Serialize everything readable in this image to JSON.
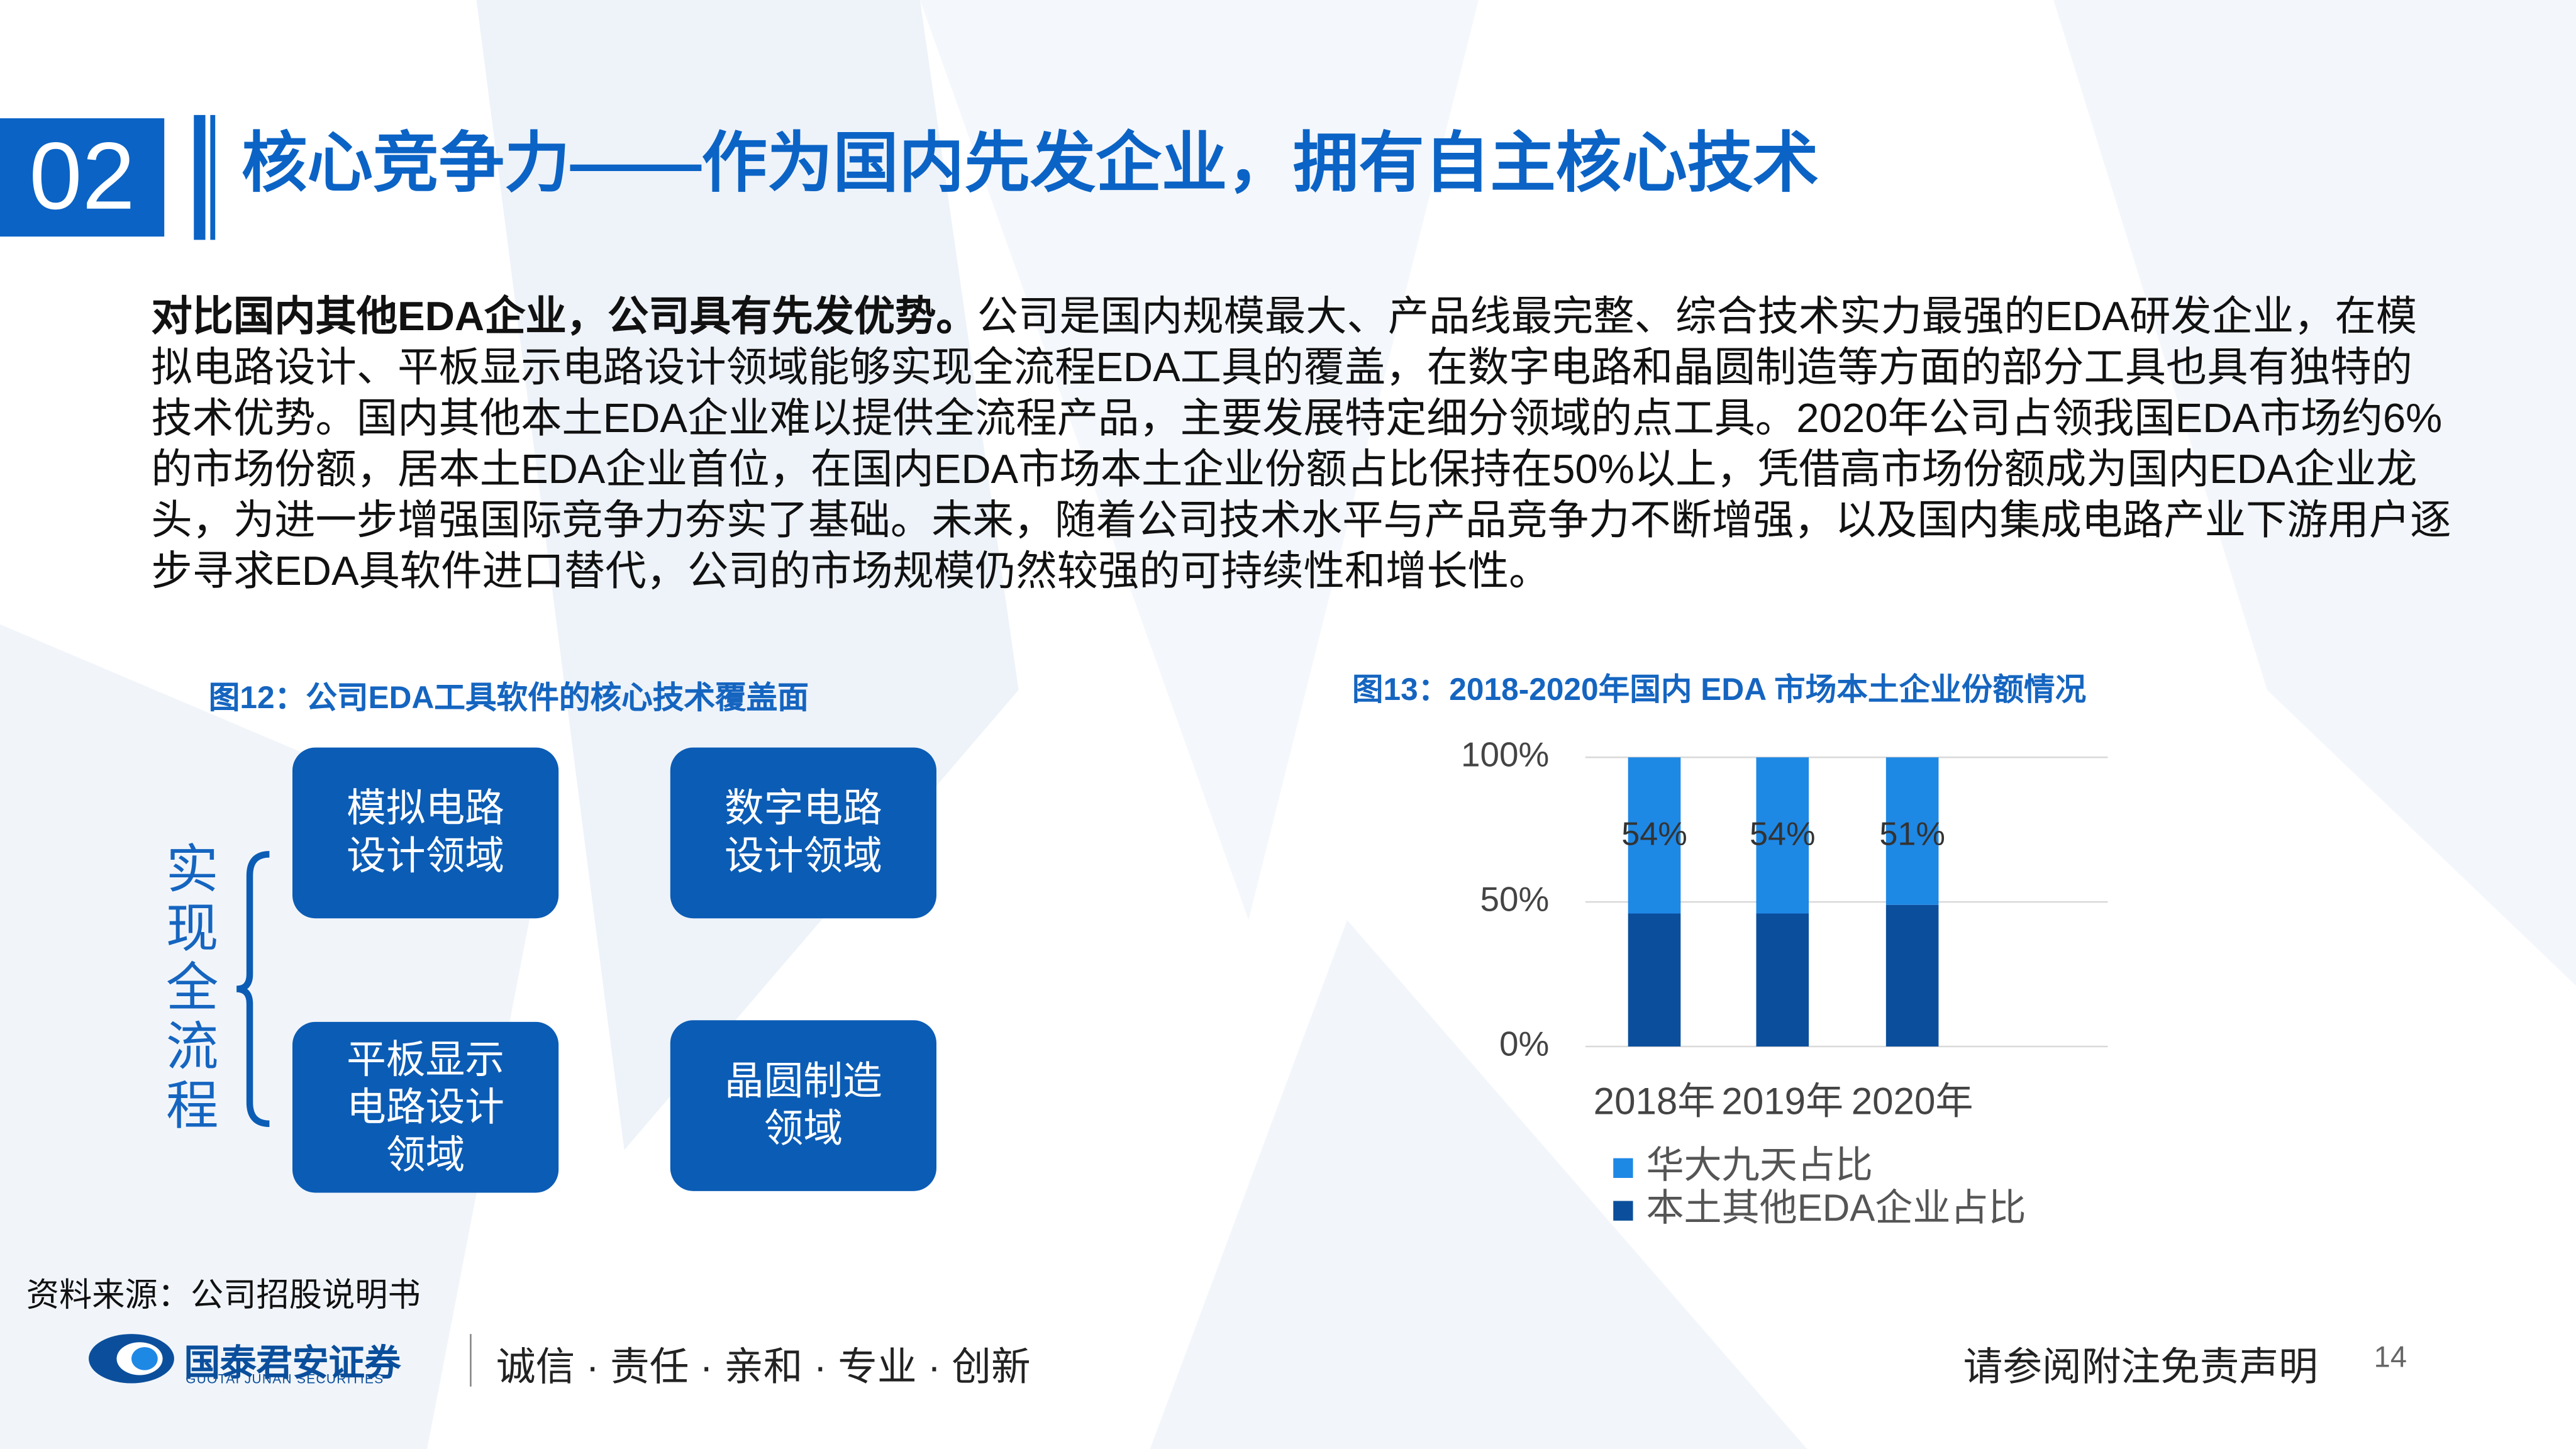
{
  "header": {
    "number": "02",
    "title": "核心竞争力——作为国内先发企业，拥有自主核心技术"
  },
  "paragraph": {
    "lead": "对比国内其他EDA企业，公司具有先发优势。",
    "text": "公司是国内规模最大、产品线最完整、综合技术实力最强的EDA研发企业，在模拟电路设计、平板显示电路设计领域能够实现全流程EDA工具的覆盖，在数字电路和晶圆制造等方面的部分工具也具有独特的技术优势。国内其他本土EDA企业难以提供全流程产品，主要发展特定细分领域的点工具。2020年公司占领我国EDA市场约6%的市场份额，居本土EDA企业首位，在国内EDA市场本土企业份额占比保持在50%以上，凭借高市场份额成为国内EDA企业龙头，为进一步增强国际竞争力夯实了基础。未来，随着公司技术水平与产品竞争力不断增强，以及国内集成电路产业下游用户逐步寻求EDA具软件进口替代，公司的市场规模仍然较强的可持续性和增长性。"
  },
  "figure12": {
    "caption": "图12：公司EDA工具软件的核心技术覆盖面",
    "side_label": "实现全流程",
    "boxes": [
      [
        "模拟电路",
        "设计领域"
      ],
      [
        "数字电路",
        "设计领域"
      ],
      [
        "平板显示",
        "电路设计",
        "领域"
      ],
      [
        "晶圆制造",
        "领域"
      ]
    ]
  },
  "chart_data": {
    "type": "bar",
    "stacked": true,
    "title": "图13：2018-2020年国内 EDA 市场本土企业份额情况",
    "categories": [
      "2018年",
      "2019年",
      "2020年"
    ],
    "series": [
      {
        "name": "华大九天占比",
        "color": "#1e88e5",
        "values": [
          54,
          54,
          51
        ],
        "value_labels": [
          "54%",
          "54%",
          "51%"
        ]
      },
      {
        "name": "本土其他EDA企业占比",
        "color": "#0b4f9c",
        "values": [
          46,
          46,
          49
        ]
      }
    ],
    "ylim": [
      0,
      100
    ],
    "yticks": [
      {
        "value": 0,
        "label": "0%"
      },
      {
        "value": 50,
        "label": "50%"
      },
      {
        "value": 100,
        "label": "100%"
      }
    ],
    "grid": true,
    "legend": "bottom"
  },
  "source": "资料来源：公司招股说明书",
  "footer": {
    "company": "国泰君安证券",
    "company_en": "GUOTAI JUNAN SECURITIES",
    "slogan": "诚信 · 责任 · 亲和 · 专业 · 创新",
    "disclaimer": "请参阅附注免责声明",
    "page": "14"
  }
}
